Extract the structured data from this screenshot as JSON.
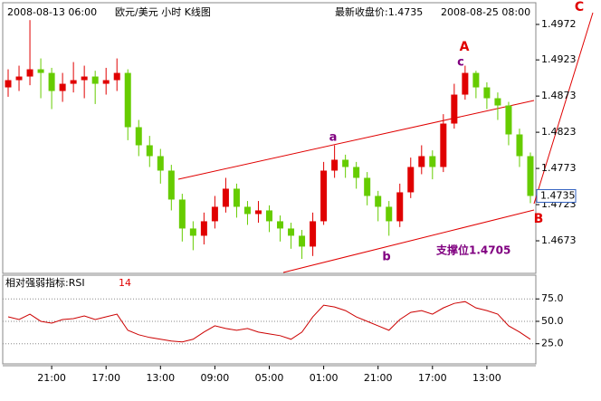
{
  "chart_data": [
    {
      "type": "candlestick",
      "title": "欧元/美元  小时  K线图",
      "start_time": "2008-08-13 06:00",
      "end_time": "2008-08-25 08:00",
      "last_close_text": "最新收盘价:1.4735",
      "last_price": 1.4735,
      "up_color": "#e00000",
      "down_color": "#66cc00",
      "categories": [
        null,
        null,
        null,
        null,
        "21:00",
        null,
        null,
        null,
        null,
        "17:00",
        null,
        null,
        null,
        null,
        "13:00",
        null,
        null,
        null,
        null,
        "09:00",
        null,
        null,
        null,
        null,
        "05:00",
        null,
        null,
        null,
        null,
        "01:00",
        null,
        null,
        null,
        null,
        "21:00",
        null,
        null,
        null,
        null,
        "17:00",
        null,
        null,
        null,
        null,
        "13:00",
        null,
        null,
        null,
        null
      ],
      "open": [
        1.4885,
        1.4895,
        1.49,
        1.491,
        1.4905,
        1.488,
        1.489,
        1.4895,
        1.49,
        1.489,
        1.4895,
        1.4905,
        1.483,
        1.4805,
        1.479,
        1.477,
        1.473,
        1.469,
        1.468,
        1.47,
        1.472,
        1.4745,
        1.472,
        1.471,
        1.4715,
        1.47,
        1.469,
        1.468,
        1.4665,
        1.47,
        1.477,
        1.4785,
        1.4775,
        1.476,
        1.4735,
        1.472,
        1.47,
        1.474,
        1.4775,
        1.479,
        1.4775,
        1.4835,
        1.4875,
        1.4905,
        1.4885,
        1.487,
        1.486,
        1.482,
        1.479
      ],
      "high": [
        1.491,
        1.4915,
        1.4978,
        1.4925,
        1.4912,
        1.4905,
        1.492,
        1.4915,
        1.4908,
        1.4912,
        1.4925,
        1.491,
        1.484,
        1.4818,
        1.48,
        1.4778,
        1.4738,
        1.47,
        1.4712,
        1.4735,
        1.476,
        1.4752,
        1.4728,
        1.4728,
        1.4722,
        1.4708,
        1.4698,
        1.4688,
        1.4712,
        1.4782,
        1.4805,
        1.4792,
        1.4782,
        1.4768,
        1.4742,
        1.4728,
        1.4752,
        1.4788,
        1.4805,
        1.4798,
        1.4848,
        1.489,
        1.4915,
        1.4908,
        1.4892,
        1.4878,
        1.4865,
        1.4828,
        1.4795
      ],
      "low": [
        1.4872,
        1.488,
        1.4888,
        1.487,
        1.4855,
        1.4865,
        1.4878,
        1.487,
        1.4862,
        1.4875,
        1.488,
        1.4812,
        1.479,
        1.4775,
        1.4752,
        1.4715,
        1.4672,
        1.466,
        1.4668,
        1.469,
        1.4712,
        1.4705,
        1.4695,
        1.4698,
        1.4685,
        1.4672,
        1.4662,
        1.4648,
        1.4652,
        1.4695,
        1.476,
        1.476,
        1.4745,
        1.4722,
        1.47,
        1.468,
        1.4692,
        1.4732,
        1.4765,
        1.4758,
        1.4768,
        1.4828,
        1.4868,
        1.487,
        1.4855,
        1.484,
        1.4805,
        1.4775,
        1.4725
      ],
      "close": [
        1.4895,
        1.49,
        1.491,
        1.4905,
        1.488,
        1.489,
        1.4895,
        1.49,
        1.489,
        1.4895,
        1.4905,
        1.483,
        1.4805,
        1.479,
        1.477,
        1.473,
        1.469,
        1.468,
        1.47,
        1.472,
        1.4745,
        1.472,
        1.471,
        1.4715,
        1.47,
        1.469,
        1.468,
        1.4665,
        1.47,
        1.477,
        1.4785,
        1.4775,
        1.476,
        1.4735,
        1.472,
        1.47,
        1.474,
        1.4775,
        1.479,
        1.4775,
        1.4835,
        1.4875,
        1.4905,
        1.4885,
        1.487,
        1.486,
        1.482,
        1.479,
        1.4735
      ],
      "ylim": [
        1.4628,
        1.5002
      ],
      "yticks": [
        1.4972,
        1.4923,
        1.4873,
        1.4823,
        1.4773,
        1.4723,
        1.4673
      ],
      "annotations": [
        {
          "text": "A",
          "color": "#e00000"
        },
        {
          "text": "c",
          "color": "#800080"
        },
        {
          "text": "a",
          "color": "#800080"
        },
        {
          "text": "b",
          "color": "#800080"
        },
        {
          "text": "B",
          "color": "#e00000"
        },
        {
          "text": "C",
          "color": "#e00000"
        },
        {
          "text": "支撑位1.4705",
          "color": "#800080"
        }
      ]
    },
    {
      "type": "line",
      "title": "相对强弱指标:RSI",
      "period": "14",
      "color": "#cc0000",
      "values": [
        55,
        52,
        58,
        50,
        48,
        52,
        53,
        56,
        52,
        55,
        58,
        40,
        35,
        32,
        30,
        28,
        27,
        30,
        38,
        45,
        42,
        40,
        42,
        38,
        36,
        34,
        30,
        38,
        55,
        68,
        66,
        62,
        55,
        50,
        45,
        40,
        52,
        60,
        62,
        58,
        65,
        70,
        72,
        65,
        62,
        58,
        45,
        38,
        30
      ],
      "ylim": [
        2.5,
        101.5
      ],
      "yticks": [
        {
          "value": 75,
          "label": "75.0"
        },
        {
          "value": 50,
          "label": "50.0"
        },
        {
          "value": 25,
          "label": "25.0"
        }
      ]
    }
  ]
}
